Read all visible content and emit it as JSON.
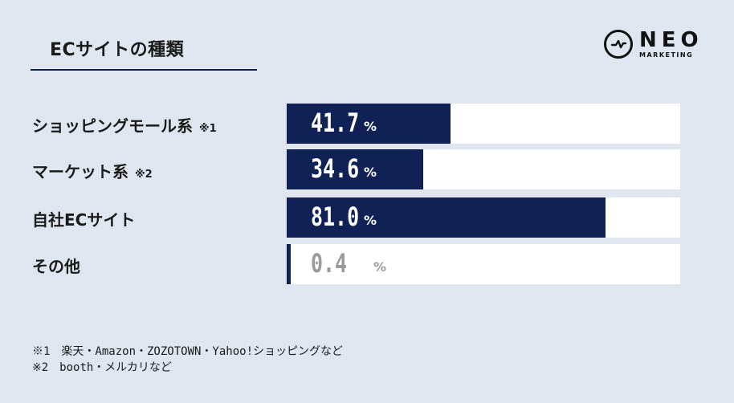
{
  "header": {
    "title": "ECサイトの種類",
    "logo_main": "NEO",
    "logo_sub": "MARKETING"
  },
  "chart_data": {
    "type": "bar",
    "orientation": "horizontal",
    "title": "ECサイトの種類",
    "unit": "%",
    "xlim": [
      0,
      100
    ],
    "categories": [
      "ショッピングモール系",
      "マーケット系",
      "自社ECサイト",
      "その他"
    ],
    "notes": [
      "※1",
      "※2",
      "",
      ""
    ],
    "values": [
      41.7,
      34.6,
      81.0,
      0.4
    ],
    "value_labels": [
      "41.7",
      "34.6",
      "81.0",
      "0.4"
    ],
    "colors": {
      "bar": "#0f2155",
      "track": "#ffffff",
      "background": "#dfe6f0"
    }
  },
  "footnotes": [
    "※1　楽天・Amazon・ZOZOTOWN・Yahoo!ショッピングなど",
    "※2　booth・メルカリなど"
  ]
}
